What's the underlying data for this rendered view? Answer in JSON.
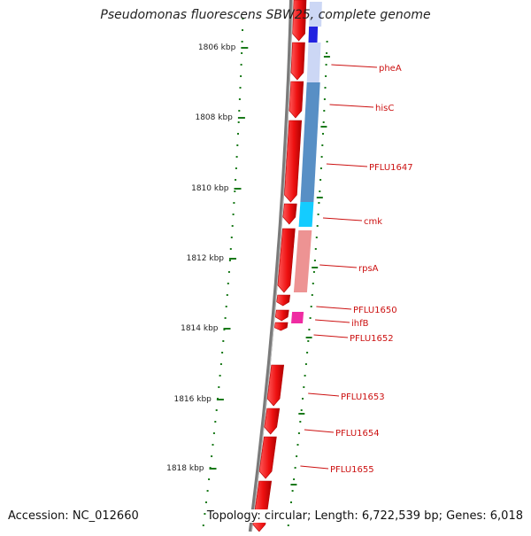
{
  "title": "Pseudomonas fluorescens SBW25, complete genome",
  "accession": "Accession: NC_012660",
  "summary": "Topology: circular; Length: 6,722,539 bp; Genes: 6,018",
  "colors": {
    "gene_forward": "#ee1111",
    "backbone": "#7a7a7a",
    "ticks": "#1a7a1a",
    "label": "#cc1111",
    "ruler_text": "#222222"
  },
  "ruler": {
    "unit": "kbp",
    "labels": [
      "1806 kbp",
      "1808 kbp",
      "1810 kbp",
      "1812 kbp",
      "1814 kbp",
      "1816 kbp",
      "1818 kbp"
    ]
  },
  "genes": [
    {
      "name": "pheA"
    },
    {
      "name": "hisC"
    },
    {
      "name": "PFLU1647"
    },
    {
      "name": "cmk"
    },
    {
      "name": "rpsA"
    },
    {
      "name": "PFLU1650"
    },
    {
      "name": "ihfB"
    },
    {
      "name": "PFLU1652"
    },
    {
      "name": "PFLU1653"
    },
    {
      "name": "PFLU1654"
    },
    {
      "name": "PFLU1655"
    }
  ],
  "feature_track_colors": [
    "#c8d4f4",
    "#1010dd",
    "#4a86c0",
    "#00c8ff",
    "#ec8a8a",
    "#ee1a9a"
  ]
}
